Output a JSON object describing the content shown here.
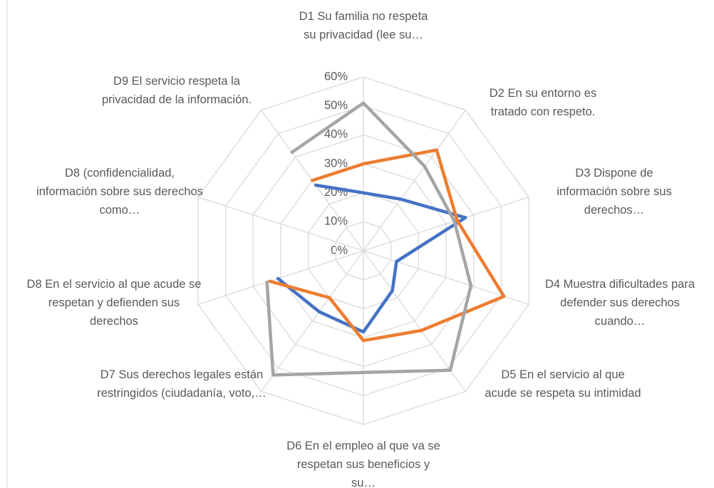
{
  "chart_data": {
    "type": "radar",
    "categories": [
      "D1 Su familia no respeta su privacidad (lee su…",
      "D2 En su entorno es tratado con respeto.",
      "D3 Dispone de información sobre sus derechos…",
      "D4 Muestra dificultades para defender sus derechos cuando…",
      "D5 En el servicio al que acude se respeta su intimidad",
      "D6 En el empleo al que va se respetan sus beneficios y su…",
      "D7 Sus derechos legales están restringidos (ciudadanía, voto,…",
      "D8 En el servicio al que acude se respetan y defienden sus derechos",
      "D8 (confidencialidad, información sobre sus derechos como…",
      "D9 El servicio respeta la privacidad de la información."
    ],
    "series": [
      {
        "color": "#4472c4",
        "values": [
          20,
          22,
          37,
          12,
          17,
          28,
          26,
          31,
          null,
          28
        ]
      },
      {
        "color": "#ed7d31",
        "values": [
          30,
          43,
          34,
          51,
          34,
          31,
          20,
          34,
          null,
          30
        ]
      },
      {
        "color": "#a5a5a5",
        "values": [
          51,
          36,
          33,
          39,
          51,
          42,
          53,
          35,
          null,
          42
        ]
      }
    ],
    "ylim": [
      0,
      60
    ],
    "yticks": [
      {
        "value": 0,
        "label": "0%"
      },
      {
        "value": 10,
        "label": "10%"
      },
      {
        "value": 20,
        "label": "20%"
      },
      {
        "value": 30,
        "label": "30%"
      },
      {
        "value": 40,
        "label": "40%"
      },
      {
        "value": 50,
        "label": "50%"
      },
      {
        "value": 60,
        "label": "60%"
      }
    ],
    "grid": true
  }
}
